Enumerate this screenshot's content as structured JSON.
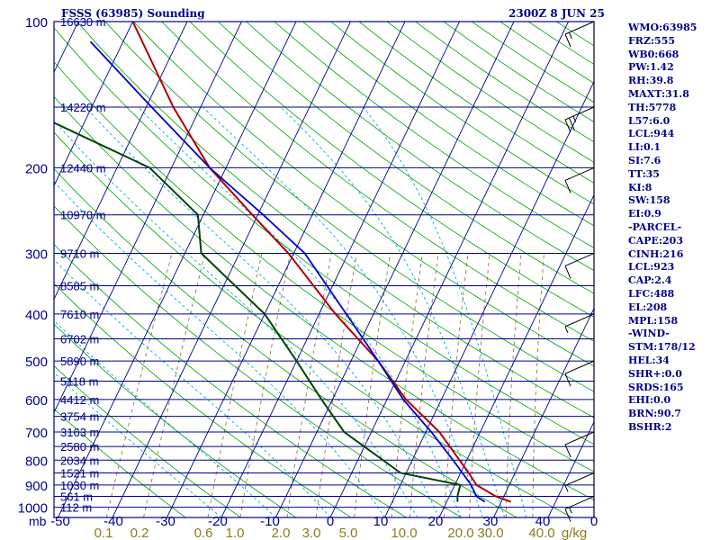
{
  "header": {
    "title": "FSSS (63985) Sounding",
    "timestamp": "2300Z  8 JUN 25"
  },
  "indices": [
    "WMO:63985",
    "FRZ:555",
    "WB0:668",
    "PW:1.42",
    "RH:39.8",
    "MAXT:31.8",
    "TH:5778",
    "L57:6.0",
    "LCL:944",
    "LI:0.1",
    "SI:7.6",
    "TT:35",
    "KI:8",
    "SW:158",
    "EI:0.9",
    "-PARCEL-",
    "CAPE:203",
    "CINH:216",
    "LCL:923",
    "CAP:2.4",
    "LFC:488",
    "EL:208",
    "MPL:158",
    "-WIND-",
    "STM:178/12",
    "HEL:34",
    "SHR+:0.0",
    "SRDS:165",
    "EHI:0.0",
    "BRN:90.7",
    "BSHR:2"
  ],
  "colors": {
    "frame": "#00008b",
    "isotherm": "#00008b",
    "isobar": "#00008b",
    "dry_adiabat": "#00a000",
    "moist_adiabat": "#00aadd",
    "mixing_ratio": "#886633",
    "temperature": "#b00000",
    "dewpoint": "#004400",
    "parcel": "#0000cc",
    "label": "#00008b",
    "mixing_label": "#8a7a20",
    "wind": "#000000"
  },
  "chart_data": {
    "type": "skew-T log-P sounding",
    "x_unit_label": "mb",
    "pressure_levels": [
      100,
      200,
      300,
      400,
      500,
      600,
      700,
      800,
      900,
      1000
    ],
    "temperature_ticks": [
      -50,
      -40,
      -30,
      -20,
      -10,
      0,
      10,
      20,
      30,
      40,
      0
    ],
    "mixing_ratio_ticks": [
      "0.1",
      "0.2",
      "0.6",
      "1.0",
      "2.0",
      "3.0",
      "5.0",
      "10.0",
      "20.0",
      "30.0",
      "40.0"
    ],
    "mixing_ratio_unit": "g/kg",
    "height_labels": [
      {
        "p": 100,
        "label": "16630 m"
      },
      {
        "p": 150,
        "label": "14220 m"
      },
      {
        "p": 200,
        "label": "12440 m"
      },
      {
        "p": 250,
        "label": "10970 m"
      },
      {
        "p": 300,
        "label": "9710 m"
      },
      {
        "p": 350,
        "label": "8585 m"
      },
      {
        "p": 400,
        "label": "7610 m"
      },
      {
        "p": 450,
        "label": "6702 m"
      },
      {
        "p": 500,
        "label": "5890 m"
      },
      {
        "p": 550,
        "label": "5118 m"
      },
      {
        "p": 600,
        "label": "4412 m"
      },
      {
        "p": 650,
        "label": "3754 m"
      },
      {
        "p": 700,
        "label": "3163 m"
      },
      {
        "p": 750,
        "label": "2580 m"
      },
      {
        "p": 800,
        "label": "2034 m"
      },
      {
        "p": 850,
        "label": "1521 m"
      },
      {
        "p": 900,
        "label": "1030 m"
      },
      {
        "p": 950,
        "label": "561 m"
      },
      {
        "p": 1000,
        "label": "112 m"
      }
    ],
    "temperature_profile": [
      {
        "p": 975,
        "t": 31.8
      },
      {
        "p": 950,
        "t": 28.5
      },
      {
        "p": 900,
        "t": 24.0
      },
      {
        "p": 850,
        "t": 21.5
      },
      {
        "p": 700,
        "t": 12.5
      },
      {
        "p": 600,
        "t": 3.5
      },
      {
        "p": 500,
        "t": -5.0
      },
      {
        "p": 400,
        "t": -17.0
      },
      {
        "p": 300,
        "t": -31.0
      },
      {
        "p": 250,
        "t": -41.0
      },
      {
        "p": 200,
        "t": -53.0
      },
      {
        "p": 150,
        "t": -65.0
      },
      {
        "p": 100,
        "t": -80.0
      }
    ],
    "dewpoint_profile": [
      {
        "p": 975,
        "t": 22.0
      },
      {
        "p": 950,
        "t": 21.5
      },
      {
        "p": 900,
        "t": 21.0
      },
      {
        "p": 850,
        "t": 9.0
      },
      {
        "p": 700,
        "t": -5.0
      },
      {
        "p": 600,
        "t": -12.0
      },
      {
        "p": 500,
        "t": -20.0
      },
      {
        "p": 400,
        "t": -30.0
      },
      {
        "p": 300,
        "t": -47.0
      },
      {
        "p": 250,
        "t": -51.0
      },
      {
        "p": 200,
        "t": -64.0
      },
      {
        "p": 150,
        "t": -93.0
      },
      {
        "p": 100,
        "t": -101.0
      }
    ],
    "parcel_profile": [
      {
        "p": 975,
        "t": 27.0
      },
      {
        "p": 950,
        "t": 25.0
      },
      {
        "p": 900,
        "t": 23.0
      },
      {
        "p": 800,
        "t": 17.5
      },
      {
        "p": 700,
        "t": 11.0
      },
      {
        "p": 600,
        "t": 3.0
      },
      {
        "p": 500,
        "t": -5.0
      },
      {
        "p": 400,
        "t": -15.0
      },
      {
        "p": 300,
        "t": -28.0
      },
      {
        "p": 250,
        "t": -39.0
      },
      {
        "p": 200,
        "t": -53.0
      },
      {
        "p": 150,
        "t": -69.0
      },
      {
        "p": 110,
        "t": -86.0
      }
    ],
    "wind_barbs": [
      {
        "p": 100,
        "speed": 15
      },
      {
        "p": 150,
        "speed": 25
      },
      {
        "p": 200,
        "speed": 10
      },
      {
        "p": 300,
        "speed": 10
      },
      {
        "p": 400,
        "speed": 5
      },
      {
        "p": 500,
        "speed": 10
      },
      {
        "p": 700,
        "speed": 10
      },
      {
        "p": 850,
        "speed": 5
      },
      {
        "p": 950,
        "speed": 15
      }
    ]
  }
}
